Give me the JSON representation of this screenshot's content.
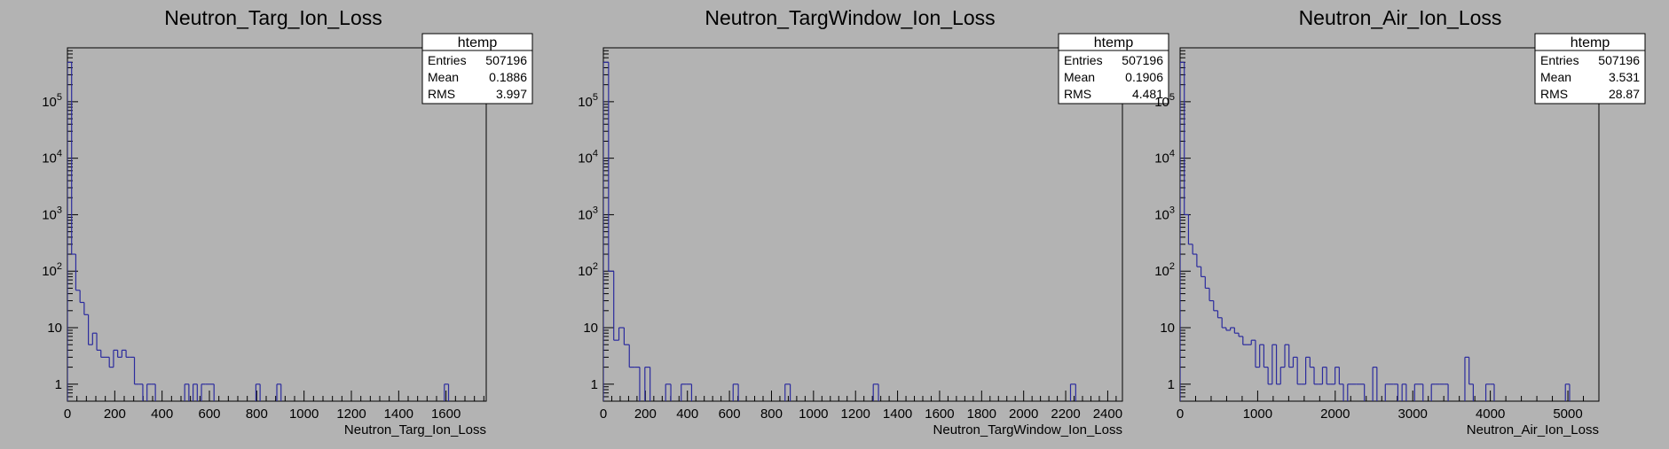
{
  "chart_data": [
    {
      "type": "histogram",
      "title": "Neutron_Targ_Ion_Loss",
      "xlabel": "Neutron_Targ_Ion_Loss",
      "ylabel": "",
      "yscale": "log",
      "xlim": [
        0,
        1770
      ],
      "ylim": [
        0.5,
        900000
      ],
      "x_ticks": [
        0,
        200,
        400,
        600,
        800,
        1000,
        1200,
        1400,
        1600
      ],
      "y_ticks": [
        {
          "v": 1,
          "t": "1"
        },
        {
          "v": 10,
          "t": "10"
        },
        {
          "v": 100,
          "t": "10",
          "exp": "2"
        },
        {
          "v": 1000,
          "t": "10",
          "exp": "3"
        },
        {
          "v": 10000,
          "t": "10",
          "exp": "4"
        },
        {
          "v": 100000,
          "t": "10",
          "exp": "5"
        }
      ],
      "bin_width": 17.7,
      "counts": [
        500000,
        200,
        46,
        28,
        17,
        5,
        8,
        4,
        3,
        3,
        2,
        4,
        3,
        4,
        3,
        3,
        1,
        1,
        0,
        1,
        1,
        0,
        0,
        0,
        0,
        0,
        0,
        0,
        1,
        0,
        1,
        0,
        1,
        1,
        1,
        0,
        0,
        0,
        0,
        0,
        0,
        0,
        0,
        0,
        0,
        1,
        0,
        0,
        0,
        0,
        1,
        0,
        0,
        0,
        0,
        0,
        0,
        0,
        0,
        0,
        0,
        0,
        0,
        0,
        0,
        0,
        0,
        0,
        0,
        0,
        0,
        0,
        0,
        0,
        0,
        0,
        0,
        0,
        0,
        0,
        0,
        0,
        0,
        0,
        0,
        0,
        0,
        0,
        0,
        0,
        1,
        0,
        0,
        0,
        0,
        0,
        0,
        0,
        0,
        0
      ],
      "stats": {
        "name": "htemp",
        "rows": [
          [
            "Entries",
            "507196"
          ],
          [
            "Mean",
            "0.1886"
          ],
          [
            "RMS",
            "3.997"
          ]
        ]
      }
    },
    {
      "type": "histogram",
      "title": "Neutron_TargWindow_Ion_Loss",
      "xlabel": "Neutron_TargWindow_Ion_Loss",
      "ylabel": "",
      "yscale": "log",
      "xlim": [
        0,
        2470
      ],
      "ylim": [
        0.5,
        900000
      ],
      "x_ticks": [
        0,
        200,
        400,
        600,
        800,
        1000,
        1200,
        1400,
        1600,
        1800,
        2000,
        2200,
        2400
      ],
      "y_ticks": [
        {
          "v": 1,
          "t": "1"
        },
        {
          "v": 10,
          "t": "10"
        },
        {
          "v": 100,
          "t": "10",
          "exp": "2"
        },
        {
          "v": 1000,
          "t": "10",
          "exp": "3"
        },
        {
          "v": 10000,
          "t": "10",
          "exp": "4"
        },
        {
          "v": 100000,
          "t": "10",
          "exp": "5"
        }
      ],
      "bin_width": 24.7,
      "counts": [
        500000,
        100,
        6,
        10,
        5,
        2,
        2,
        0,
        2,
        0,
        0,
        0,
        1,
        0,
        0,
        1,
        1,
        0,
        0,
        0,
        0,
        0,
        0,
        0,
        0,
        1,
        0,
        0,
        0,
        0,
        0,
        0,
        0,
        0,
        0,
        1,
        0,
        0,
        0,
        0,
        0,
        0,
        0,
        0,
        0,
        0,
        0,
        0,
        0,
        0,
        0,
        0,
        1,
        0,
        0,
        0,
        0,
        0,
        0,
        0,
        0,
        0,
        0,
        0,
        0,
        0,
        0,
        0,
        0,
        0,
        0,
        0,
        0,
        0,
        0,
        0,
        0,
        0,
        0,
        0,
        0,
        0,
        0,
        0,
        0,
        0,
        0,
        0,
        0,
        0,
        1,
        0,
        0,
        0,
        0,
        0,
        0,
        0,
        0,
        0
      ],
      "stats": {
        "name": "htemp",
        "rows": [
          [
            "Entries",
            "507196"
          ],
          [
            "Mean",
            "0.1906"
          ],
          [
            "RMS",
            "4.481"
          ]
        ]
      }
    },
    {
      "type": "histogram",
      "title": "Neutron_Air_Ion_Loss",
      "xlabel": "Neutron_Air_Ion_Loss",
      "ylabel": "",
      "yscale": "log",
      "xlim": [
        0,
        5400
      ],
      "ylim": [
        0.5,
        900000
      ],
      "x_ticks": [
        0,
        1000,
        2000,
        3000,
        4000,
        5000
      ],
      "y_ticks": [
        {
          "v": 1,
          "t": "1"
        },
        {
          "v": 10,
          "t": "10"
        },
        {
          "v": 100,
          "t": "10",
          "exp": "2"
        },
        {
          "v": 1000,
          "t": "10",
          "exp": "3"
        },
        {
          "v": 10000,
          "t": "10",
          "exp": "4"
        },
        {
          "v": 100000,
          "t": "10",
          "exp": "5"
        }
      ],
      "bin_width": 54,
      "counts": [
        500000,
        1000,
        300,
        200,
        120,
        80,
        50,
        30,
        20,
        15,
        10,
        9,
        10,
        8,
        7,
        5,
        5,
        6,
        2,
        5,
        2,
        1,
        5,
        1,
        2,
        5,
        2,
        3,
        1,
        1,
        3,
        2,
        1,
        1,
        2,
        1,
        1,
        2,
        1,
        0,
        1,
        1,
        1,
        1,
        0,
        0,
        2,
        0,
        0,
        1,
        1,
        1,
        0,
        1,
        0,
        0,
        1,
        1,
        0,
        0,
        1,
        1,
        1,
        1,
        0,
        0,
        0,
        0,
        3,
        1,
        0,
        0,
        0,
        1,
        1,
        0,
        0,
        0,
        0,
        0,
        0,
        0,
        0,
        0,
        0,
        0,
        0,
        0,
        0,
        0,
        0,
        0,
        1,
        0,
        0,
        0,
        0,
        0,
        0,
        0
      ],
      "stats": {
        "name": "htemp",
        "rows": [
          [
            "Entries",
            "507196"
          ],
          [
            "Mean",
            "3.531"
          ],
          [
            "RMS",
            "28.87"
          ]
        ]
      }
    }
  ],
  "colors": {
    "background": "#b3b3b3",
    "histogram_line": "#2b2b9e",
    "frame": "#000000",
    "stats_box": "#ffffff"
  }
}
